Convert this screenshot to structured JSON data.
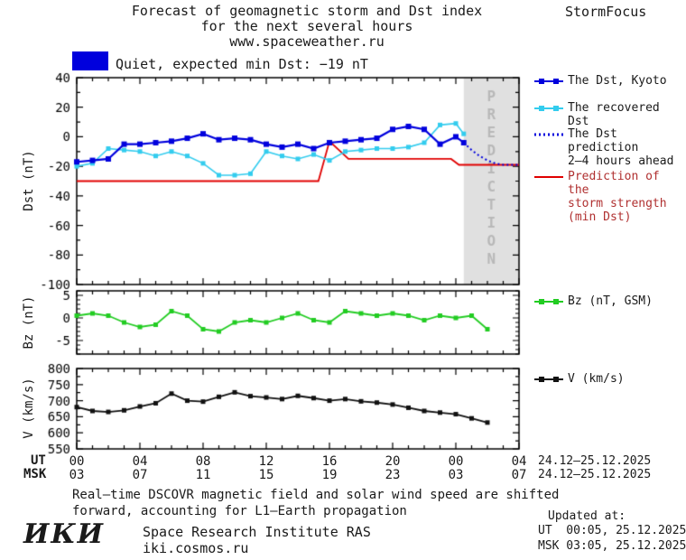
{
  "header": {
    "title_line1": "Forecast of geomagnetic storm and Dst index",
    "title_line2": "for the next several hours",
    "title_line3": "www.spaceweather.ru",
    "brand": "StormFocus"
  },
  "status": {
    "label": "Quiet, expected min Dst: −19 nT",
    "swatch_color": "#0000dd"
  },
  "prediction_band": {
    "label": "PREDICTION",
    "start_hour": 24.5,
    "color": "#e0e0e0",
    "text_color": "#b8b8b8"
  },
  "colors": {
    "blue": "#0000dd",
    "cyan": "#33ccee",
    "red": "#e00000",
    "green": "#22cc22",
    "black": "#111111",
    "legend_text": "#1a1a1a",
    "legend_storm_text": "#b03030"
  },
  "legend": {
    "dst_kyoto": "The Dst, Kyoto",
    "recovered": "The recovered Dst",
    "prediction_line1": "The Dst prediction",
    "prediction_line2": "2–4 hours ahead",
    "storm_line1": "Prediction of the",
    "storm_line2": "storm strength",
    "storm_line3": "(min Dst)",
    "bz": "Bz (nT, GSM)",
    "v": "V (km/s)"
  },
  "xaxis": {
    "ut_label": "UT",
    "msk_label": "MSK",
    "ut_ticks": [
      "00",
      "04",
      "08",
      "12",
      "16",
      "20",
      "00",
      "04"
    ],
    "msk_ticks": [
      "03",
      "07",
      "11",
      "15",
      "19",
      "23",
      "03",
      "07"
    ],
    "date_range": "24.12–25.12.2025"
  },
  "chart_data": [
    {
      "type": "line",
      "title": "Dst index observed and predicted",
      "ylabel": "Dst (nT)",
      "ylim": [
        -100,
        40
      ],
      "yticks": [
        40,
        20,
        0,
        -20,
        -40,
        -60,
        -80,
        -100
      ],
      "xlim": [
        0,
        28
      ],
      "xticks": [
        0,
        4,
        8,
        12,
        16,
        20,
        24,
        28
      ],
      "series": [
        {
          "name": "The Dst, Kyoto",
          "color": "#0000dd",
          "marker": "square",
          "marker_size": 6,
          "width": 2.2,
          "x": [
            0,
            1,
            2,
            3,
            4,
            5,
            6,
            7,
            8,
            9,
            10,
            11,
            12,
            13,
            14,
            15,
            16,
            17,
            18,
            19,
            20,
            21,
            22,
            23,
            24,
            24.5
          ],
          "y": [
            -17,
            -16,
            -15,
            -5,
            -5,
            -4,
            -3,
            -1,
            2,
            -2,
            -1,
            -2,
            -5,
            -7,
            -5,
            -8,
            -4,
            -3,
            -2,
            -1,
            5,
            7,
            5,
            -5,
            0,
            -4
          ]
        },
        {
          "name": "The recovered Dst",
          "color": "#33ccee",
          "marker": "square",
          "marker_size": 5,
          "width": 1.6,
          "x": [
            0,
            1,
            2,
            3,
            4,
            5,
            6,
            7,
            8,
            9,
            10,
            11,
            12,
            13,
            14,
            15,
            16,
            17,
            18,
            19,
            20,
            21,
            22,
            23,
            24,
            24.5
          ],
          "y": [
            -20,
            -18,
            -8,
            -9,
            -10,
            -13,
            -10,
            -13,
            -18,
            -26,
            -26,
            -25,
            -10,
            -13,
            -15,
            -12,
            -16,
            -10,
            -9,
            -8,
            -8,
            -7,
            -4,
            8,
            9,
            2
          ]
        },
        {
          "name": "The Dst prediction 2–4 hours ahead",
          "color": "#0000dd",
          "style": "dotted",
          "width": 2,
          "x": [
            24.5,
            25,
            25.5,
            26,
            26.5,
            27,
            28
          ],
          "y": [
            -4,
            -9,
            -13,
            -16,
            -18,
            -19,
            -19
          ]
        },
        {
          "name": "Prediction of the storm strength (min Dst)",
          "color": "#e00000",
          "width": 1.8,
          "x": [
            0,
            15.3,
            16,
            17.2,
            23.7,
            24.2,
            28
          ],
          "y": [
            -30,
            -30,
            -3,
            -15,
            -15,
            -19,
            -19
          ]
        }
      ]
    },
    {
      "type": "line",
      "title": "Interplanetary magnetic field Bz",
      "ylabel": "Bz (nT)",
      "ylim": [
        -8,
        6
      ],
      "yticks": [
        5,
        0,
        -5
      ],
      "xlim": [
        0,
        28
      ],
      "xticks": [
        0,
        4,
        8,
        12,
        16,
        20,
        24,
        28
      ],
      "series": [
        {
          "name": "Bz (nT, GSM)",
          "color": "#22cc22",
          "marker": "square",
          "marker_size": 5,
          "width": 1.8,
          "x": [
            0,
            1,
            2,
            3,
            4,
            5,
            6,
            7,
            8,
            9,
            10,
            11,
            12,
            13,
            14,
            15,
            16,
            17,
            18,
            19,
            20,
            21,
            22,
            23,
            24,
            25,
            26
          ],
          "y": [
            0.5,
            1,
            0.5,
            -1,
            -2,
            -1.5,
            1.5,
            0.5,
            -2.5,
            -3,
            -1,
            -0.5,
            -1,
            0,
            1,
            -0.5,
            -1,
            1.5,
            1,
            0.5,
            1,
            0.5,
            -0.5,
            0.5,
            0,
            0.5,
            -2.5
          ]
        }
      ]
    },
    {
      "type": "line",
      "title": "Solar wind speed",
      "ylabel": "V (km/s)",
      "ylim": [
        550,
        800
      ],
      "yticks": [
        800,
        750,
        700,
        650,
        600,
        550
      ],
      "xlim": [
        0,
        28
      ],
      "xticks": [
        0,
        4,
        8,
        12,
        16,
        20,
        24,
        28
      ],
      "series": [
        {
          "name": "V (km/s)",
          "color": "#111111",
          "marker": "square",
          "marker_size": 5,
          "width": 1.8,
          "x": [
            0,
            1,
            2,
            3,
            4,
            5,
            6,
            7,
            8,
            9,
            10,
            11,
            12,
            13,
            14,
            15,
            16,
            17,
            18,
            19,
            20,
            21,
            22,
            23,
            24,
            25,
            26
          ],
          "y": [
            680,
            668,
            665,
            670,
            682,
            692,
            722,
            700,
            697,
            712,
            726,
            714,
            710,
            705,
            715,
            708,
            700,
            705,
            698,
            694,
            688,
            678,
            668,
            663,
            658,
            645,
            632
          ]
        }
      ]
    }
  ],
  "footer": {
    "note_line1": "Real–time DSCOVR magnetic field and solar wind speed are shifted",
    "note_line2": "forward, accounting for L1–Earth propagation",
    "logo": "ИКИ",
    "institute": "Space Research Institute RAS",
    "site": "iki.cosmos.ru",
    "updated_label": "Updated at:",
    "updated_ut": "UT  00:05, 25.12.2025",
    "updated_msk": "MSK 03:05, 25.12.2025"
  }
}
